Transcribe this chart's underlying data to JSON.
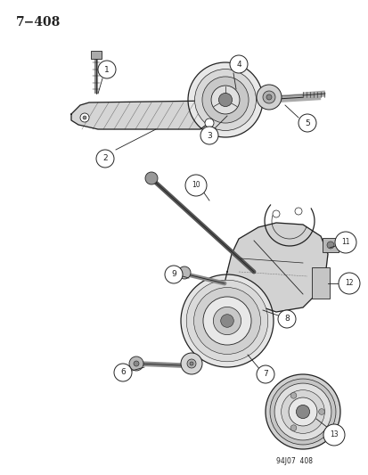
{
  "title": "7−408",
  "footer": "94J07  408",
  "background_color": "#ffffff",
  "line_color": "#222222",
  "title_font_size": 10,
  "fig_w": 4.14,
  "fig_h": 5.33,
  "dpi": 100
}
